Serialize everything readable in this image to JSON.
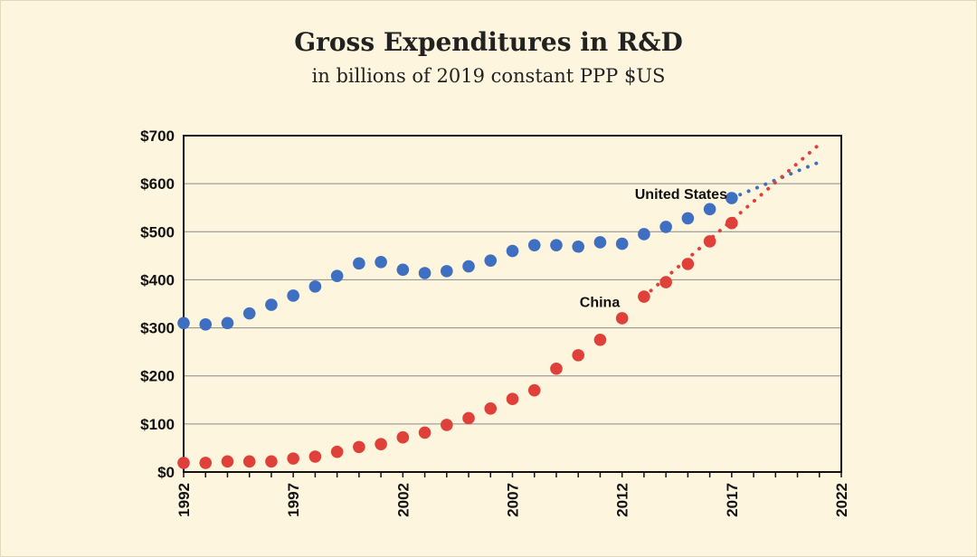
{
  "chart_data": {
    "type": "scatter",
    "title": "Gross Expenditures in R&D",
    "subtitle": "in billions of 2019 constant PPP $US",
    "xlabel": "",
    "ylabel": "",
    "xlim": [
      1992,
      2022
    ],
    "ylim": [
      0,
      700
    ],
    "x_ticks": [
      {
        "value": 1992,
        "label": "1992"
      },
      {
        "value": 1997,
        "label": "1997"
      },
      {
        "value": 2002,
        "label": "2002"
      },
      {
        "value": 2007,
        "label": "2007"
      },
      {
        "value": 2012,
        "label": "2012"
      },
      {
        "value": 2017,
        "label": "2017"
      },
      {
        "value": 2022,
        "label": "2022"
      }
    ],
    "y_ticks": [
      {
        "value": 0,
        "label": "$0"
      },
      {
        "value": 100,
        "label": "$100"
      },
      {
        "value": 200,
        "label": "$200"
      },
      {
        "value": 300,
        "label": "$300"
      },
      {
        "value": 400,
        "label": "$400"
      },
      {
        "value": 500,
        "label": "$500"
      },
      {
        "value": 600,
        "label": "$600"
      },
      {
        "value": 700,
        "label": "$700"
      }
    ],
    "grid": true,
    "series": [
      {
        "name": "United States",
        "label": "United States",
        "color": "#3f6fc0",
        "x": [
          1992,
          1993,
          1994,
          1995,
          1996,
          1997,
          1998,
          1999,
          2000,
          2001,
          2002,
          2003,
          2004,
          2005,
          2006,
          2007,
          2008,
          2009,
          2010,
          2011,
          2012,
          2013,
          2014,
          2015,
          2016,
          2017
        ],
        "values": [
          310,
          307,
          310,
          330,
          348,
          367,
          386,
          408,
          434,
          437,
          421,
          414,
          418,
          428,
          440,
          460,
          472,
          472,
          469,
          478,
          475,
          495,
          510,
          528,
          547,
          570
        ],
        "projection": {
          "x": [
            2017,
            2021
          ],
          "values": [
            570,
            645
          ]
        }
      },
      {
        "name": "China",
        "label": "China",
        "color": "#e0403a",
        "x": [
          1992,
          1993,
          1994,
          1995,
          1996,
          1997,
          1998,
          1999,
          2000,
          2001,
          2002,
          2003,
          2004,
          2005,
          2006,
          2007,
          2008,
          2009,
          2010,
          2011,
          2012,
          2013,
          2014,
          2015,
          2016,
          2017
        ],
        "values": [
          19,
          19,
          22,
          22,
          22,
          28,
          32,
          42,
          52,
          58,
          72,
          82,
          98,
          112,
          132,
          152,
          170,
          215,
          243,
          275,
          320,
          365,
          395,
          433,
          480,
          518
        ],
        "projection": {
          "x": [
            2013,
            2021
          ],
          "values": [
            365,
            682
          ]
        }
      }
    ]
  }
}
